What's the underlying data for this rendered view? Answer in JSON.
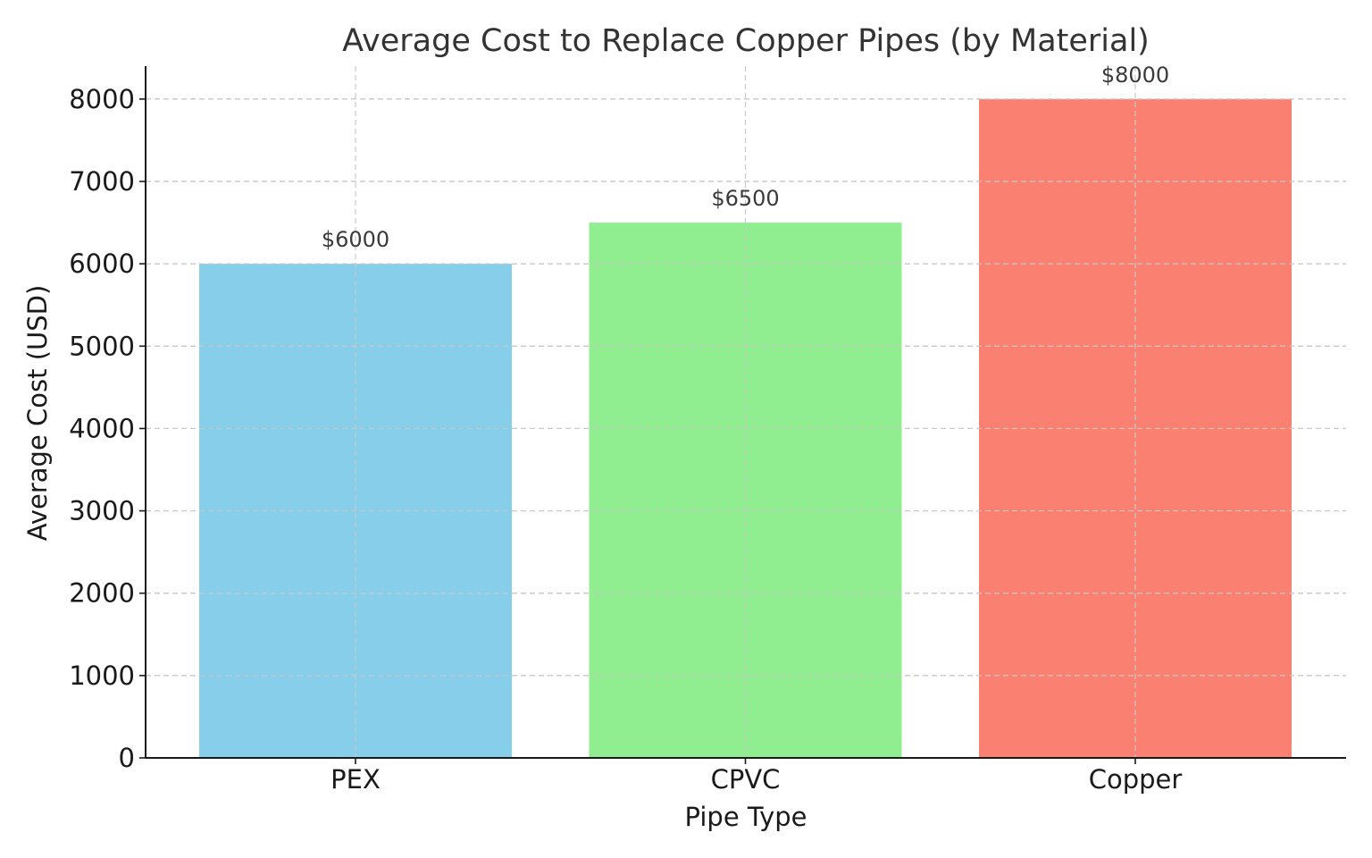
{
  "chart_data": {
    "type": "bar",
    "title": "Average Cost to Replace Copper Pipes (by Material)",
    "xlabel": "Pipe Type",
    "ylabel": "Average Cost (USD)",
    "categories": [
      "PEX",
      "CPVC",
      "Copper"
    ],
    "values": [
      6000,
      6500,
      8000
    ],
    "data_labels": [
      "$6000",
      "$6500",
      "$8000"
    ],
    "colors": [
      "#87CEEB",
      "#90EE90",
      "#FA8072"
    ],
    "ylim": [
      0,
      8400
    ],
    "yticks": [
      0,
      1000,
      2000,
      3000,
      4000,
      5000,
      6000,
      7000,
      8000
    ],
    "ytick_labels": [
      "0",
      "1000",
      "2000",
      "3000",
      "4000",
      "5000",
      "6000",
      "7000",
      "8000"
    ],
    "grid": true
  }
}
